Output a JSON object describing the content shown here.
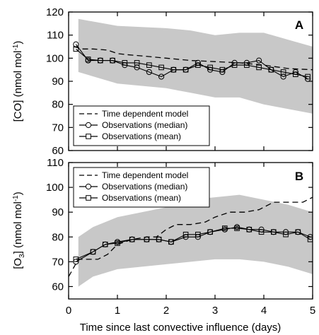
{
  "chart_data": [
    {
      "type": "line",
      "panel_label": "A",
      "ylabel_main": "[CO] (nmol mol",
      "ylabel_sup": "-1",
      "ylabel_end": ")",
      "xlim": [
        0,
        5
      ],
      "ylim": [
        60,
        120
      ],
      "yticks": [
        60,
        70,
        80,
        90,
        100,
        110,
        120
      ],
      "xticks": [
        0,
        1,
        2,
        3,
        4,
        5
      ],
      "legend": {
        "position": "bottom-left",
        "entries": [
          "Time dependent model",
          "Observations (median)",
          "Observations (mean)"
        ]
      },
      "band": {
        "x": [
          0.2,
          1.0,
          2.0,
          2.5,
          3.0,
          3.5,
          4.0,
          4.5,
          5.0
        ],
        "upper": [
          117,
          114,
          113,
          112,
          110,
          111,
          111,
          108,
          105
        ],
        "lower": [
          94,
          89,
          87,
          85,
          83,
          83,
          80,
          78,
          76
        ]
      },
      "series": [
        {
          "name": "Time dependent model",
          "style": "dashed",
          "x": [
            0.1,
            0.3,
            0.5,
            0.8,
            1.0,
            1.2,
            1.5,
            2.0,
            2.5,
            3.0,
            3.5,
            4.0,
            4.5,
            5.0
          ],
          "y": [
            105,
            104,
            104,
            103.5,
            102,
            101.5,
            101,
            100,
            99,
            98.5,
            98,
            97,
            95.5,
            95
          ]
        },
        {
          "name": "Observations (median)",
          "marker": "circle",
          "x": [
            0.15,
            0.4,
            0.65,
            0.9,
            1.15,
            1.4,
            1.65,
            1.9,
            2.15,
            2.4,
            2.65,
            2.9,
            3.15,
            3.4,
            3.65,
            3.9,
            4.15,
            4.4,
            4.65,
            4.9
          ],
          "y": [
            106,
            99,
            99,
            99,
            97,
            96,
            94,
            92,
            95,
            95,
            98,
            95,
            94,
            98,
            98,
            99,
            95,
            92,
            94,
            91
          ]
        },
        {
          "name": "Observations (mean)",
          "marker": "square",
          "x": [
            0.15,
            0.4,
            0.65,
            0.9,
            1.15,
            1.4,
            1.65,
            1.9,
            2.15,
            2.4,
            2.65,
            2.9,
            3.15,
            3.4,
            3.65,
            3.9,
            4.15,
            4.4,
            4.65,
            4.9
          ],
          "y": [
            104,
            99.5,
            99,
            99,
            98,
            98,
            97,
            96,
            95,
            95,
            97,
            96,
            95,
            97,
            97,
            96,
            95,
            94,
            93,
            92
          ]
        }
      ]
    },
    {
      "type": "line",
      "panel_label": "B",
      "ylabel_main": "[O",
      "ylabel_sub": "3",
      "ylabel_mid": "] (nmol mol",
      "ylabel_sup": "-1",
      "ylabel_end": ")",
      "xlabel": "Time since last convective influence (days)",
      "xlim": [
        0,
        5
      ],
      "ylim": [
        55,
        110
      ],
      "yticks": [
        60,
        70,
        80,
        90,
        100,
        110
      ],
      "xticks": [
        0,
        1,
        2,
        3,
        4,
        5
      ],
      "legend": {
        "position": "top-left",
        "entries": [
          "Time dependent model",
          "Observations (median)",
          "Observations (mean)"
        ]
      },
      "band": {
        "x": [
          0.2,
          0.5,
          1.0,
          1.5,
          2.0,
          2.5,
          3.0,
          3.5,
          4.0,
          4.5,
          5.0
        ],
        "upper": [
          80,
          84,
          88,
          90,
          92,
          95,
          96,
          97,
          95,
          93,
          90
        ],
        "lower": [
          60,
          64,
          67,
          68,
          69,
          70,
          71,
          71,
          70,
          68,
          65
        ]
      },
      "series": [
        {
          "name": "Time dependent model",
          "style": "dashed",
          "x": [
            0.0,
            0.2,
            0.4,
            0.6,
            0.8,
            1.0,
            1.3,
            1.6,
            1.8,
            2.0,
            2.2,
            2.5,
            2.8,
            3.0,
            3.3,
            3.6,
            3.9,
            4.2,
            4.5,
            4.8,
            5.0
          ],
          "y": [
            64,
            71,
            71,
            71,
            73,
            77,
            79,
            80,
            80,
            83,
            85,
            85,
            86,
            88,
            90,
            90,
            91,
            94,
            94,
            94,
            96
          ]
        },
        {
          "name": "Observations (median)",
          "marker": "circle",
          "x": [
            0.15,
            0.5,
            0.75,
            1.0,
            1.3,
            1.6,
            1.85,
            2.1,
            2.4,
            2.65,
            2.9,
            3.2,
            3.45,
            3.7,
            3.95,
            4.2,
            4.45,
            4.7,
            4.95
          ],
          "y": [
            70,
            74,
            77,
            78,
            79,
            79,
            79,
            78,
            80,
            80,
            82,
            83,
            84,
            83,
            83,
            82,
            82,
            82,
            80
          ]
        },
        {
          "name": "Observations (mean)",
          "marker": "square",
          "x": [
            0.15,
            0.5,
            0.75,
            1.0,
            1.3,
            1.6,
            1.85,
            2.1,
            2.4,
            2.65,
            2.9,
            3.2,
            3.45,
            3.7,
            3.95,
            4.2,
            4.45,
            4.7,
            4.95
          ],
          "y": [
            71,
            74,
            77,
            77.5,
            79,
            79,
            79,
            78,
            81,
            81,
            82,
            83.5,
            83.5,
            83,
            82,
            82,
            81,
            82,
            79
          ]
        }
      ]
    }
  ]
}
